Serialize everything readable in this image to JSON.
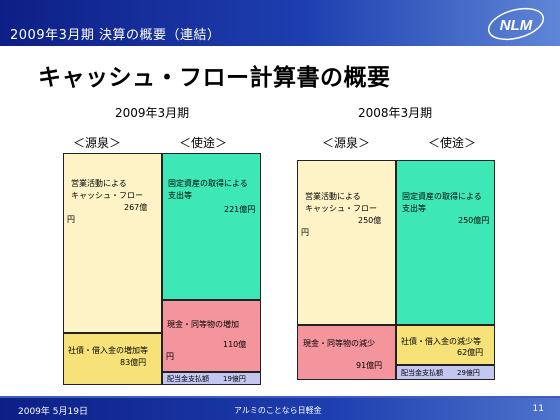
{
  "header": {
    "title": "2009年3月期 決算の概要（連結）",
    "logo": "NLM"
  },
  "page_title": "キャッシュ・フロー計算書の概要",
  "left": {
    "period": "2009年3月期",
    "sources_label": "＜源泉＞",
    "uses_label": "＜使途＞",
    "sources": [
      {
        "lines": [
          "営業活動による",
          "キャッシュ・フロー"
        ],
        "value": "267億",
        "unit": "円"
      },
      {
        "lines": [
          "社債・借入金の増加等"
        ],
        "value": "83億円"
      }
    ],
    "uses": [
      {
        "lines": [
          "固定資産の取得による",
          "支出等"
        ],
        "value": "221億円"
      },
      {
        "lines": [
          "現金・同等物の増加"
        ],
        "value": "110億",
        "unit": "円"
      },
      {
        "lines": [
          "配当金支払額"
        ],
        "value": "19億円"
      }
    ]
  },
  "right": {
    "period": "2008年3月期",
    "sources_label": "＜源泉＞",
    "uses_label": "＜使途＞",
    "sources": [
      {
        "lines": [
          "営業活動による",
          "キャッシュ・フロー"
        ],
        "value": "250億",
        "unit": "円"
      },
      {
        "lines": [
          "現金・同等物の減少"
        ],
        "value": "91億円"
      }
    ],
    "uses": [
      {
        "lines": [
          "固定資産の取得による",
          "支出等"
        ],
        "value": "250億円"
      },
      {
        "lines": [
          "社債・借入金の減少等"
        ],
        "value": "62億円"
      },
      {
        "lines": [
          "配当金支払額"
        ],
        "value": "29億円"
      }
    ]
  },
  "footer": {
    "date": "2009年 5月19日",
    "center": "アルミのことなら日軽金",
    "page": "11"
  },
  "colors": {
    "header_blue": "#0d1f86",
    "operating_cf": "#fdf3c6",
    "capex": "#3de8b6",
    "cash_change": "#f4949c",
    "debt": "#f7e27a",
    "dividend": "#c3c6ef"
  }
}
